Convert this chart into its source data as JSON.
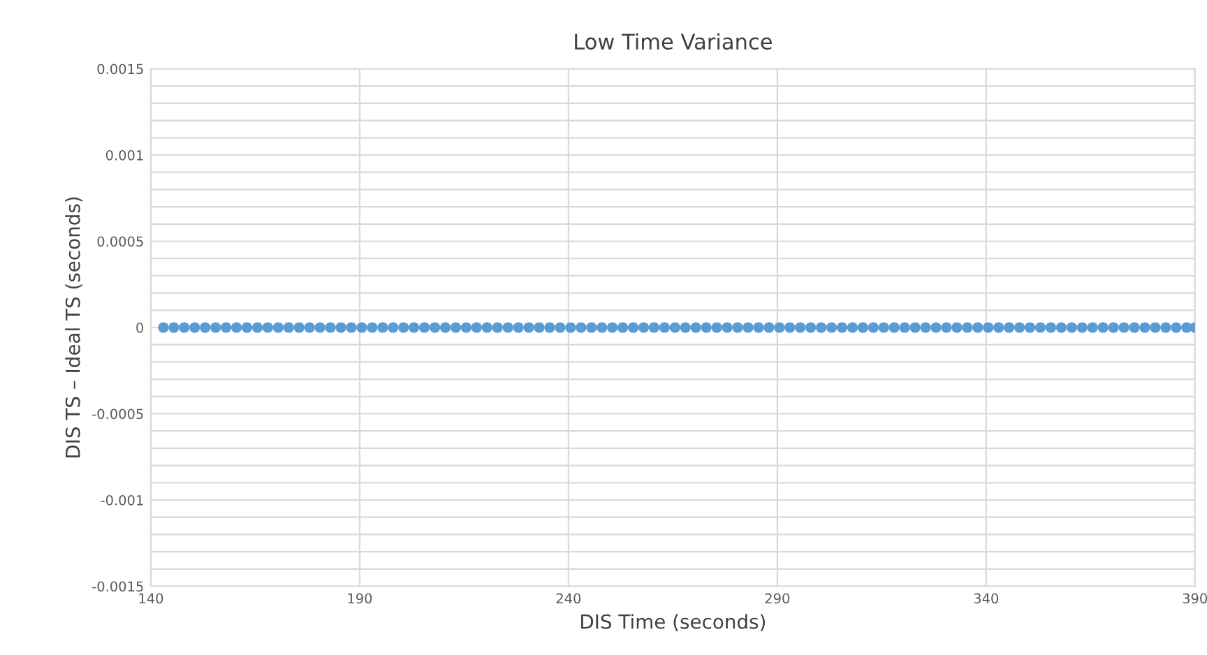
{
  "chart_data": {
    "type": "scatter",
    "title": "Low Time Variance",
    "xlabel": "DIS Time (seconds)",
    "ylabel": "DIS TS – Ideal TS (seconds)",
    "xlim": [
      140,
      390
    ],
    "xticks": [
      140,
      190,
      240,
      290,
      340,
      390
    ],
    "ylim": [
      -0.0015,
      0.0015
    ],
    "yticks": [
      {
        "value": -0.0015,
        "label": "-0.0015"
      },
      {
        "value": -0.0014,
        "label": null
      },
      {
        "value": -0.0013,
        "label": null
      },
      {
        "value": -0.0012,
        "label": null
      },
      {
        "value": -0.0011,
        "label": null
      },
      {
        "value": -0.001,
        "label": "-0.001"
      },
      {
        "value": -0.0009,
        "label": null
      },
      {
        "value": -0.0008,
        "label": null
      },
      {
        "value": -0.0007,
        "label": null
      },
      {
        "value": -0.0006,
        "label": null
      },
      {
        "value": -0.0005,
        "label": "-0.0005"
      },
      {
        "value": -0.0004,
        "label": null
      },
      {
        "value": -0.0003,
        "label": null
      },
      {
        "value": -0.0002,
        "label": null
      },
      {
        "value": -0.0001,
        "label": null
      },
      {
        "value": 0,
        "label": "0"
      },
      {
        "value": 0.0001,
        "label": null
      },
      {
        "value": 0.0002,
        "label": null
      },
      {
        "value": 0.0003,
        "label": null
      },
      {
        "value": 0.0004,
        "label": null
      },
      {
        "value": 0.0005,
        "label": "0.0005"
      },
      {
        "value": 0.0006,
        "label": null
      },
      {
        "value": 0.0007,
        "label": null
      },
      {
        "value": 0.0008,
        "label": null
      },
      {
        "value": 0.0009,
        "label": null
      },
      {
        "value": 0.001,
        "label": "0.001"
      },
      {
        "value": 0.0011,
        "label": null
      },
      {
        "value": 0.0012,
        "label": null
      },
      {
        "value": 0.0013,
        "label": null
      },
      {
        "value": 0.0014,
        "label": null
      },
      {
        "value": 0.0015,
        "label": "0.0015"
      }
    ],
    "grid": true,
    "marker": "circle",
    "series": [
      {
        "color": "#5b9bd5",
        "x": [
          143,
          145.5,
          148,
          150.5,
          153,
          155.5,
          158,
          160.5,
          163,
          165.5,
          168,
          170.5,
          173,
          175.5,
          178,
          180.5,
          183,
          185.5,
          188,
          190.5,
          193,
          195.5,
          198,
          200.5,
          203,
          205.5,
          208,
          210.5,
          213,
          215.5,
          218,
          220.5,
          223,
          225.5,
          228,
          230.5,
          233,
          235.5,
          238,
          240.5,
          243,
          245.5,
          248,
          250.5,
          253,
          255.5,
          258,
          260.5,
          263,
          265.5,
          268,
          270.5,
          273,
          275.5,
          278,
          280.5,
          283,
          285.5,
          288,
          290.5,
          293,
          295.5,
          298,
          300.5,
          303,
          305.5,
          308,
          310.5,
          313,
          315.5,
          318,
          320.5,
          323,
          325.5,
          328,
          330.5,
          333,
          335.5,
          338,
          340.5,
          343,
          345.5,
          348,
          350.5,
          353,
          355.5,
          358,
          360.5,
          363,
          365.5,
          368,
          370.5,
          373,
          375.5,
          378,
          380.5,
          383,
          385.5,
          388,
          390
        ],
        "values": [
          0,
          0,
          0,
          0,
          0,
          0,
          0,
          0,
          0,
          0,
          0,
          0,
          0,
          0,
          0,
          0,
          0,
          0,
          0,
          0,
          0,
          0,
          0,
          0,
          0,
          0,
          0,
          0,
          0,
          0,
          0,
          0,
          0,
          0,
          0,
          0,
          0,
          0,
          0,
          0,
          0,
          0,
          0,
          0,
          0,
          0,
          0,
          0,
          0,
          0,
          0,
          0,
          0,
          0,
          0,
          0,
          0,
          0,
          0,
          0,
          0,
          0,
          0,
          0,
          0,
          0,
          0,
          0,
          0,
          0,
          0,
          0,
          0,
          0,
          0,
          0,
          0,
          0,
          0,
          0,
          0,
          0,
          0,
          0,
          0,
          0,
          0,
          0,
          0,
          0,
          0,
          0,
          0,
          0,
          0,
          0,
          0,
          0,
          0,
          0
        ]
      }
    ]
  }
}
